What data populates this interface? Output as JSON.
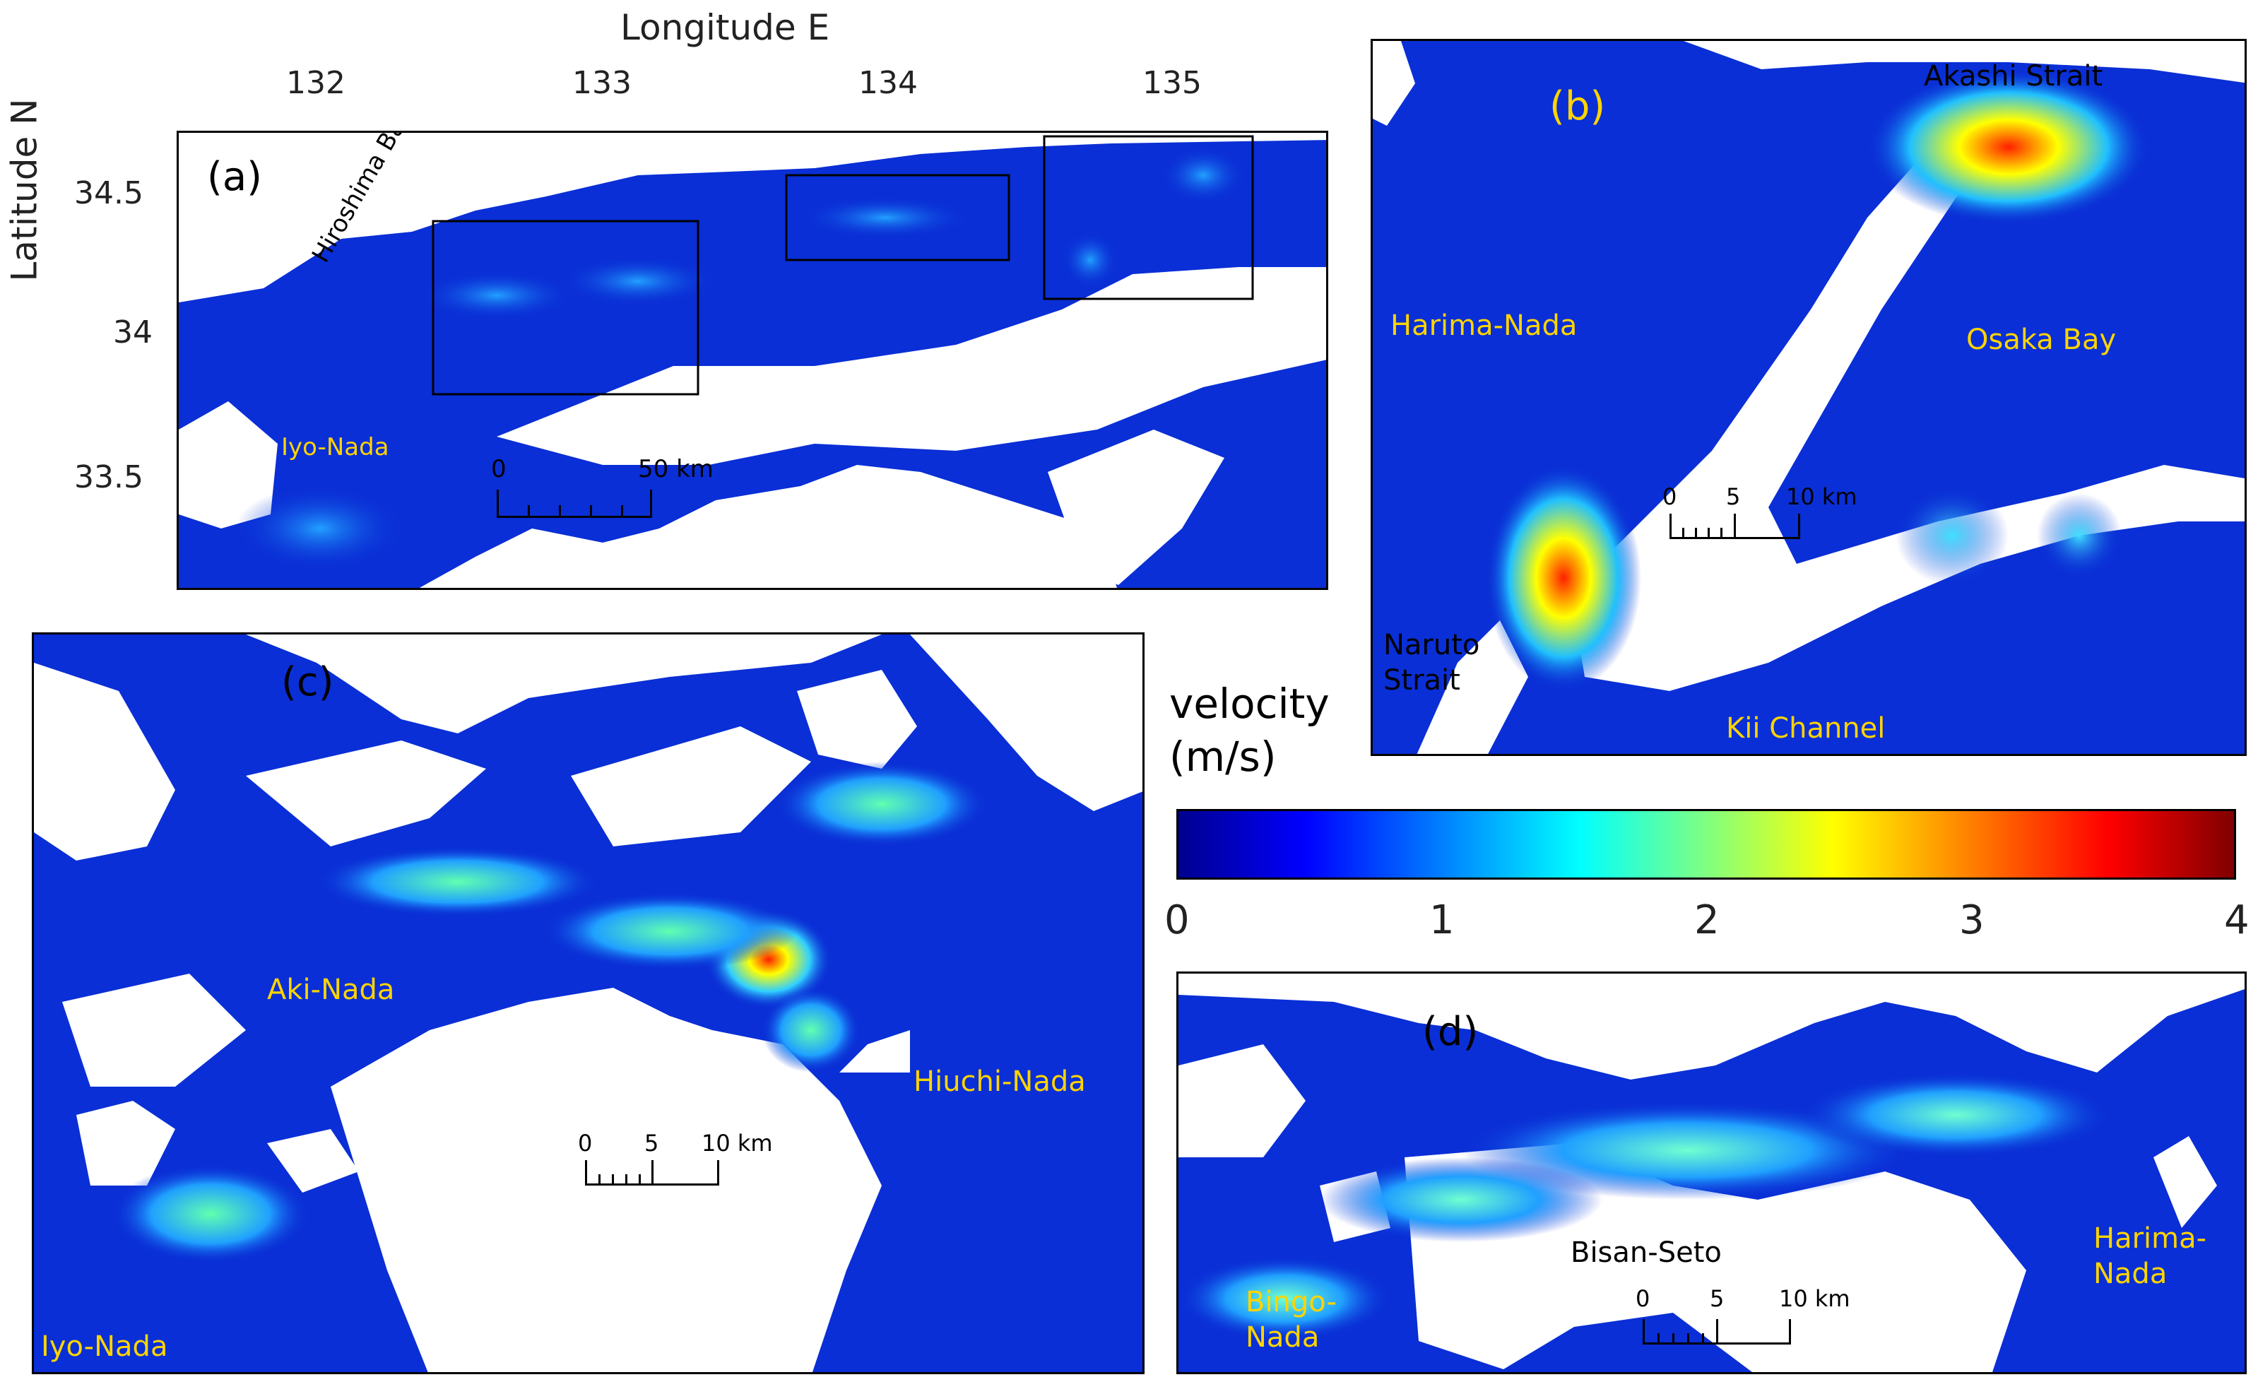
{
  "axes": {
    "xlabel": "Longitude E",
    "ylabel": "Latitude N",
    "xticks": [
      "132",
      "133",
      "134",
      "135"
    ],
    "yticks": [
      "34.5",
      "34",
      "33.5"
    ]
  },
  "panels": {
    "a": {
      "label": "(a)",
      "place_names": {
        "hiroshima_bay": "Hiroshima Bay",
        "iyo_nada": "Iyo-Nada"
      },
      "scale": {
        "zero": "0",
        "end": "50 km"
      }
    },
    "b": {
      "label": "(b)",
      "place_names": {
        "akashi_strait": "Akashi Strait",
        "harima_nada": "Harima-Nada",
        "osaka_bay": "Osaka Bay",
        "naruto_strait": "Naruto Strait",
        "kii_channel": "Kii Channel"
      },
      "scale": {
        "zero": "0",
        "mid": "5",
        "end": "10 km"
      }
    },
    "c": {
      "label": "(c)",
      "place_names": {
        "aki_nada": "Aki-Nada",
        "hiuchi_nada": "Hiuchi-Nada",
        "iyo_nada": "Iyo-Nada"
      },
      "scale": {
        "zero": "0",
        "mid": "5",
        "end": "10 km"
      }
    },
    "d": {
      "label": "(d)",
      "place_names": {
        "bisan_seto": "Bisan-Seto",
        "bingo_nada": "Bingo-Nada",
        "harima_nada": "Harima-Nada"
      },
      "scale": {
        "zero": "0",
        "mid": "5",
        "end": "10 km"
      }
    }
  },
  "colorbar": {
    "title": "velocity (m/s)",
    "title_line1": "velocity",
    "title_line2": "(m/s)",
    "ticks": [
      "0",
      "1",
      "2",
      "3",
      "4"
    ],
    "range": [
      0,
      4
    ],
    "colormap": "jet"
  },
  "colors": {
    "water": "#0a2fd6",
    "land": "#ffffff",
    "place_label_yellow": "#ffd400",
    "fast_current": "#ff2000"
  }
}
